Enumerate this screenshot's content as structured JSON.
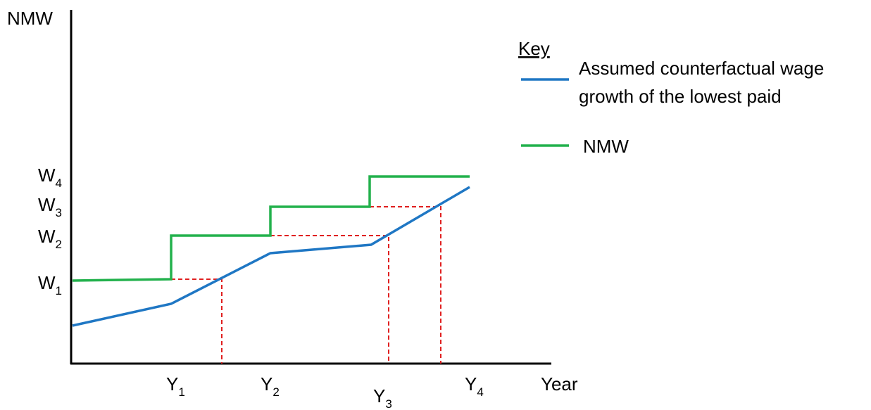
{
  "y_axis_label": "NMW",
  "x_axis_label": "Year",
  "wage_levels": [
    {
      "base": "W",
      "sub": "1"
    },
    {
      "base": "W",
      "sub": "2"
    },
    {
      "base": "W",
      "sub": "3"
    },
    {
      "base": "W",
      "sub": "4"
    }
  ],
  "years": [
    {
      "base": "Y",
      "sub": "1"
    },
    {
      "base": "Y",
      "sub": "2"
    },
    {
      "base": "Y",
      "sub": "3"
    },
    {
      "base": "Y",
      "sub": "4"
    }
  ],
  "key": {
    "title": "Key",
    "entries": [
      {
        "lines": [
          "Assumed counterfactual wage",
          "growth of the lowest paid"
        ]
      },
      {
        "lines": [
          "NMW"
        ]
      }
    ]
  }
}
